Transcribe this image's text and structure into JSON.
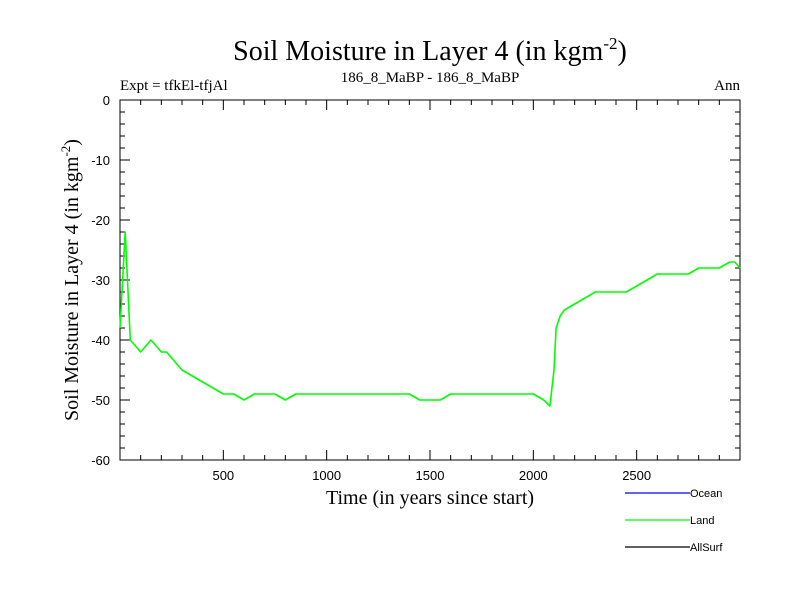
{
  "chart_data": {
    "type": "line",
    "title": "Soil Moisture in Layer 4 (in kgm",
    "title_sup": "-2",
    "title_close": ")",
    "subtitle_left": "Expt = tfkEl-tfjAl",
    "subtitle_center": "186_8_MaBP - 186_8_MaBP",
    "subtitle_right": "Ann",
    "xlabel": "Time (in years since start)",
    "ylabel": "Soil Moisture in Layer 4 (in kgm",
    "ylabel_sup": "-2",
    "ylabel_close": ")",
    "xlim": [
      0,
      3000
    ],
    "ylim": [
      -60,
      0
    ],
    "x_ticks": [
      500,
      1000,
      1500,
      2000,
      2500
    ],
    "x_tick_labels": [
      "500",
      "1000",
      "1500",
      "2000",
      "2500"
    ],
    "y_ticks": [
      0,
      -10,
      -20,
      -30,
      -40,
      -50,
      -60
    ],
    "y_tick_labels": [
      "0",
      "-10",
      "-20",
      "-30",
      "-40",
      "-50",
      "-60"
    ],
    "grid": false,
    "legend_position": "bottom-right",
    "legend": [
      {
        "name": "Ocean",
        "color": "#0000ff"
      },
      {
        "name": "Land",
        "color": "#00ff00"
      },
      {
        "name": "AllSurf",
        "color": "#000000"
      }
    ],
    "series": [
      {
        "name": "Land",
        "color": "#00ff00",
        "x": [
          0,
          25,
          50,
          75,
          100,
          125,
          150,
          175,
          200,
          225,
          250,
          275,
          300,
          350,
          400,
          450,
          500,
          550,
          600,
          650,
          700,
          750,
          800,
          850,
          900,
          950,
          1000,
          1050,
          1100,
          1150,
          1200,
          1250,
          1300,
          1350,
          1400,
          1450,
          1500,
          1550,
          1600,
          1650,
          1700,
          1750,
          1800,
          1850,
          1900,
          1950,
          2000,
          2050,
          2080,
          2100,
          2110,
          2130,
          2150,
          2200,
          2250,
          2300,
          2350,
          2400,
          2450,
          2500,
          2550,
          2600,
          2650,
          2700,
          2750,
          2800,
          2850,
          2900,
          2950,
          2975,
          3000
        ],
        "y": [
          -38,
          -22,
          -40,
          -41,
          -42,
          -41,
          -40,
          -41,
          -42,
          -42,
          -43,
          -44,
          -45,
          -46,
          -47,
          -48,
          -49,
          -49,
          -50,
          -49,
          -49,
          -49,
          -50,
          -49,
          -49,
          -49,
          -49,
          -49,
          -49,
          -49,
          -49,
          -49,
          -49,
          -49,
          -49,
          -50,
          -50,
          -50,
          -49,
          -49,
          -49,
          -49,
          -49,
          -49,
          -49,
          -49,
          -49,
          -50,
          -51,
          -45,
          -38,
          -36,
          -35,
          -34,
          -33,
          -32,
          -32,
          -32,
          -32,
          -31,
          -30,
          -29,
          -29,
          -29,
          -29,
          -28,
          -28,
          -28,
          -27,
          -27,
          -28
        ]
      }
    ]
  }
}
